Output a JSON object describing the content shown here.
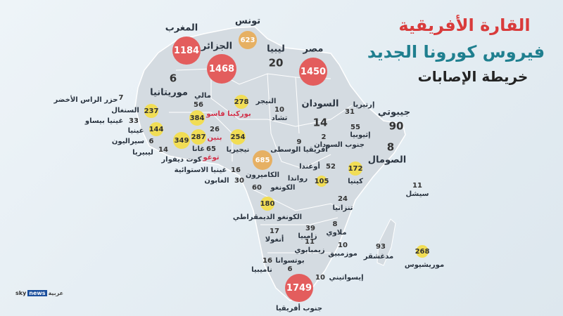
{
  "title": {
    "line1": "القارة الأفريقية",
    "line2": "فيروس كورونا الجديد",
    "line3": "خريطة الإصابات"
  },
  "logo": {
    "sky": "sky",
    "news": "news",
    "arabic": "عربية"
  },
  "colors": {
    "red": "#e35d5d",
    "orange": "#e6b063",
    "yellow": "#f1dd55",
    "land": "#d4dbe1",
    "title_red": "#d93b3b",
    "title_teal": "#1f7f8f"
  },
  "countries": [
    {
      "name": "المغرب",
      "cases": "1184",
      "tier": "red"
    },
    {
      "name": "الجزائر",
      "cases": "1468",
      "tier": "red"
    },
    {
      "name": "تونس",
      "cases": "623",
      "tier": "orange"
    },
    {
      "name": "ليبيا",
      "cases": "20",
      "tier": "none"
    },
    {
      "name": "مصر",
      "cases": "1450",
      "tier": "red"
    },
    {
      "name": "موريتانيا",
      "cases": "6",
      "tier": "none"
    },
    {
      "name": "حزر الراس الأخضر",
      "cases": "7",
      "tier": "none"
    },
    {
      "name": "السنغال",
      "cases": "237",
      "tier": "yellow"
    },
    {
      "name": "غينيا بيساو",
      "cases": "33",
      "tier": "none"
    },
    {
      "name": "غينيا",
      "cases": "144",
      "tier": "yellow"
    },
    {
      "name": "سيراليون",
      "cases": "6",
      "tier": "none"
    },
    {
      "name": "ليبيريا",
      "cases": "14",
      "tier": "none"
    },
    {
      "name": "كوت ديفوار",
      "cases": "349",
      "tier": "yellow"
    },
    {
      "name": "مالي",
      "cases": "56",
      "tier": "none"
    },
    {
      "name": "النيجر",
      "cases": "278",
      "tier": "yellow"
    },
    {
      "name": "بوركينا فاسو",
      "cases": "384",
      "tier": "yellow"
    },
    {
      "name": "غانا",
      "cases": "287",
      "tier": "yellow"
    },
    {
      "name": "بنين",
      "cases": "26",
      "tier": "none"
    },
    {
      "name": "توغو",
      "cases": "65",
      "tier": "none"
    },
    {
      "name": "نيجيريا",
      "cases": "254",
      "tier": "yellow"
    },
    {
      "name": "الكاميرون",
      "cases": "685",
      "tier": "orange"
    },
    {
      "name": "غينيا الاستوائية",
      "cases": "16",
      "tier": "none"
    },
    {
      "name": "الغابون",
      "cases": "30",
      "tier": "none"
    },
    {
      "name": "الكونغو",
      "cases": "60",
      "tier": "none"
    },
    {
      "name": "الكونغو الديمقراطي",
      "cases": "180",
      "tier": "yellow"
    },
    {
      "name": "تشاد",
      "cases": "10",
      "tier": "none"
    },
    {
      "name": "أفريقيا الوسطى",
      "cases": "9",
      "tier": "none"
    },
    {
      "name": "السودان",
      "cases": "14",
      "tier": "none"
    },
    {
      "name": "جنوب السودان",
      "cases": "2",
      "tier": "none"
    },
    {
      "name": "إرتيريا",
      "cases": "31",
      "tier": "none"
    },
    {
      "name": "جيبوتي",
      "cases": "90",
      "tier": "none"
    },
    {
      "name": "إثيوبيا",
      "cases": "55",
      "tier": "none"
    },
    {
      "name": "الصومال",
      "cases": "8",
      "tier": "none"
    },
    {
      "name": "أوغندا",
      "cases": "52",
      "tier": "none"
    },
    {
      "name": "كينيا",
      "cases": "172",
      "tier": "yellow"
    },
    {
      "name": "رواندا",
      "cases": "105",
      "tier": "yellow"
    },
    {
      "name": "تنزانيا",
      "cases": "24",
      "tier": "none"
    },
    {
      "name": "سيشل",
      "cases": "11",
      "tier": "none"
    },
    {
      "name": "أنغولا",
      "cases": "17",
      "tier": "none"
    },
    {
      "name": "زامبيا",
      "cases": "39",
      "tier": "none"
    },
    {
      "name": "ملاوي",
      "cases": "8",
      "tier": "none"
    },
    {
      "name": "زيمبابوي",
      "cases": "11",
      "tier": "none"
    },
    {
      "name": "موزمبيق",
      "cases": "10",
      "tier": "none"
    },
    {
      "name": "بوتسوانا",
      "cases": "6",
      "tier": "none"
    },
    {
      "name": "ناميبيا",
      "cases": "16",
      "tier": "none"
    },
    {
      "name": "جنوب أفريقيا",
      "cases": "1749",
      "tier": "red"
    },
    {
      "name": "إيسواتيني",
      "cases": "10",
      "tier": "none"
    },
    {
      "name": "مدغشقر",
      "cases": "93",
      "tier": "none"
    },
    {
      "name": "موريشيوس",
      "cases": "268",
      "tier": "yellow"
    }
  ]
}
